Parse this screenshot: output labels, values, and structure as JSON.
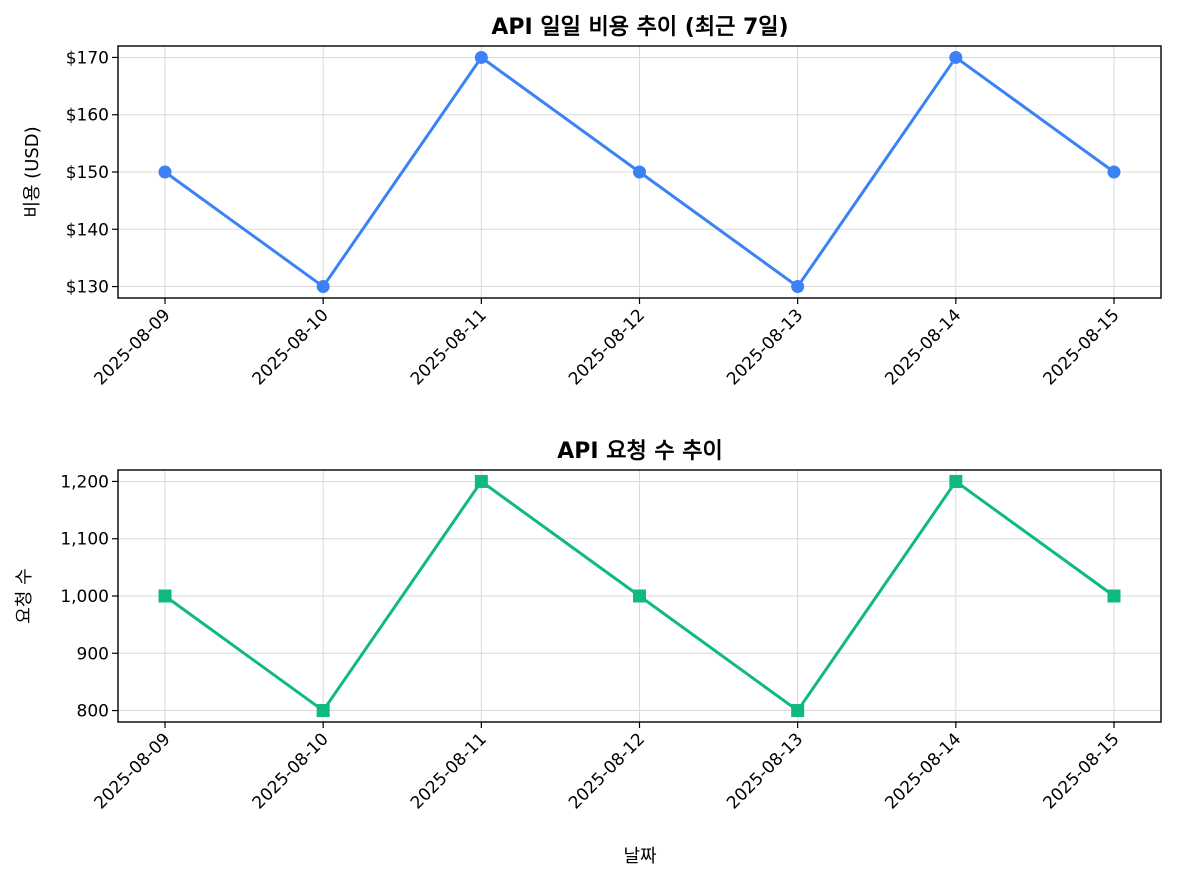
{
  "chart_data": [
    {
      "type": "line",
      "title": "API 일일 비용 추이 (최근 7일)",
      "xlabel": "",
      "ylabel": "비용 (USD)",
      "categories": [
        "2025-08-09",
        "2025-08-10",
        "2025-08-11",
        "2025-08-12",
        "2025-08-13",
        "2025-08-14",
        "2025-08-15"
      ],
      "values": [
        150,
        130,
        170,
        150,
        130,
        170,
        150
      ],
      "ylim": [
        128,
        172
      ],
      "yticks": [
        130,
        140,
        150,
        160,
        170
      ],
      "ytick_labels": [
        "$130",
        "$140",
        "$150",
        "$160",
        "$170"
      ],
      "color": "#3b82f6",
      "marker": "circle",
      "grid": true
    },
    {
      "type": "line",
      "title": "API 요청 수 추이",
      "xlabel": "날짜",
      "ylabel": "요청 수",
      "categories": [
        "2025-08-09",
        "2025-08-10",
        "2025-08-11",
        "2025-08-12",
        "2025-08-13",
        "2025-08-14",
        "2025-08-15"
      ],
      "values": [
        1000,
        800,
        1200,
        1000,
        800,
        1200,
        1000
      ],
      "ylim": [
        780,
        1220
      ],
      "yticks": [
        800,
        900,
        1000,
        1100,
        1200
      ],
      "ytick_labels": [
        "800",
        "900",
        "1,000",
        "1,100",
        "1,200"
      ],
      "color": "#10b981",
      "marker": "square",
      "grid": true
    }
  ]
}
